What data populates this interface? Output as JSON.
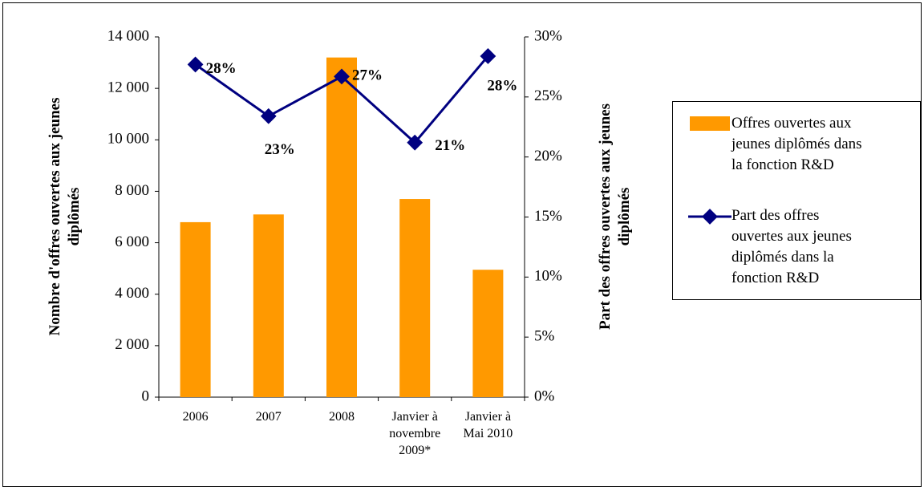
{
  "chart_data": {
    "type": "bar-line",
    "categories": [
      "2006",
      "2007",
      "2008",
      "Janvier à novembre 2009*",
      "Janvier à Mai 2010"
    ],
    "y_label": "Nombre d'offres ouvertes aux jeunes diplômés",
    "y2_label": "Part des offres ouvertes aux jeunes diplômés",
    "ylim": [
      0,
      14000
    ],
    "yticks": [
      0,
      {
        "value": 2000,
        "label": "2 000"
      },
      {
        "value": 4000,
        "label": "4 000"
      },
      {
        "value": 6000,
        "label": "6 000"
      },
      {
        "value": 8000,
        "label": "8 000"
      },
      {
        "value": 10000,
        "label": "10 000"
      },
      {
        "value": 12000,
        "label": "12 000"
      },
      {
        "value": 14000,
        "label": "14 000"
      }
    ],
    "y2lim": [
      0,
      30
    ],
    "y2ticks": [
      {
        "value": 0,
        "label": "0%"
      },
      {
        "value": 5,
        "label": "5%"
      },
      {
        "value": 10,
        "label": "10%"
      },
      {
        "value": 15,
        "label": "15%"
      },
      {
        "value": 20,
        "label": "20%"
      },
      {
        "value": 25,
        "label": "25%"
      },
      {
        "value": 30,
        "label": "30%"
      }
    ],
    "legend": "right",
    "series": [
      {
        "name": "Offres ouvertes aux jeunes diplômés dans la fonction R&D",
        "type": "bar",
        "color": "#ff9900",
        "values": [
          6800,
          7100,
          13200,
          7700,
          4950
        ]
      },
      {
        "name": "Part des offres ouvertes aux jeunes diplômés dans la fonction R&D",
        "type": "line",
        "axis": "y2",
        "color": "#000080",
        "values": [
          27.7,
          23.4,
          26.7,
          21.2,
          28.4
        ],
        "value_labels": [
          "28%",
          "23%",
          "27%",
          "21%",
          "28%"
        ]
      }
    ]
  }
}
